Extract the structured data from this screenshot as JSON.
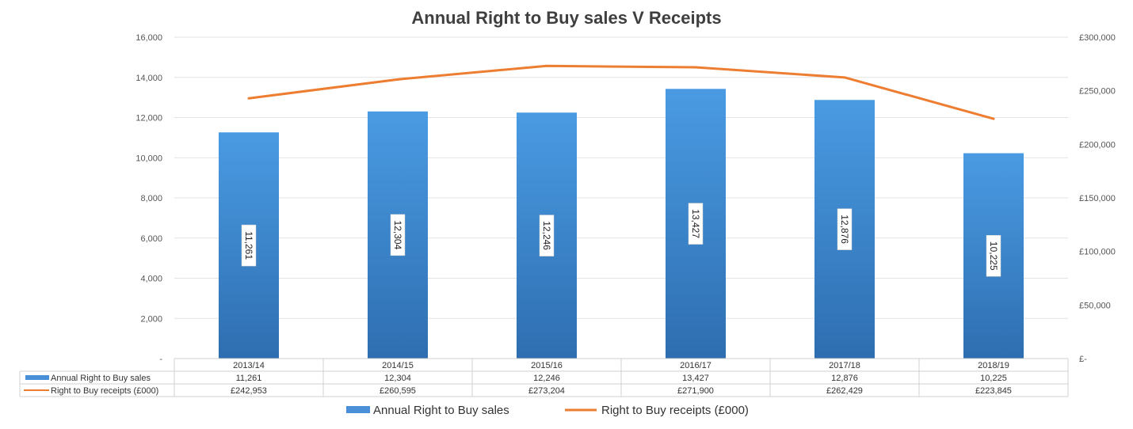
{
  "chart_data": {
    "type": "bar",
    "title": "Annual Right to Buy sales V Receipts",
    "categories": [
      "2013/14",
      "2014/15",
      "2015/16",
      "2016/17",
      "2017/18",
      "2018/19"
    ],
    "series": [
      {
        "name": "Annual Right to Buy sales",
        "type": "bar",
        "axis": "left",
        "values": [
          11261,
          12304,
          12246,
          13427,
          12876,
          10225
        ],
        "labels": [
          "11,261",
          "12,304",
          "12,246",
          "13,427",
          "12,876",
          "10,225"
        ],
        "color": "#4a90d9"
      },
      {
        "name": "Right to Buy receipts (£000)",
        "type": "line",
        "axis": "right",
        "values": [
          242953,
          260595,
          273204,
          271900,
          262429,
          223845
        ],
        "labels": [
          "£242,953",
          "£260,595",
          "£273,204",
          "£271,900",
          "£262,429",
          "£223,845"
        ],
        "color": "#ed7d31"
      }
    ],
    "y_left": {
      "ylim": [
        0,
        16000
      ],
      "ticks": [
        0,
        2000,
        4000,
        6000,
        8000,
        10000,
        12000,
        14000,
        16000
      ],
      "tick_labels": [
        "-",
        "2,000",
        "4,000",
        "6,000",
        "8,000",
        "10,000",
        "12,000",
        "14,000",
        "16,000"
      ]
    },
    "y_right": {
      "ylim": [
        0,
        300000
      ],
      "ticks": [
        0,
        50000,
        100000,
        150000,
        200000,
        250000,
        300000
      ],
      "tick_labels": [
        "£-",
        "£50,000",
        "£100,000",
        "£150,000",
        "£200,000",
        "£250,000",
        "£300,000"
      ]
    },
    "grid": true,
    "data_table": true,
    "legend_position": "bottom"
  }
}
